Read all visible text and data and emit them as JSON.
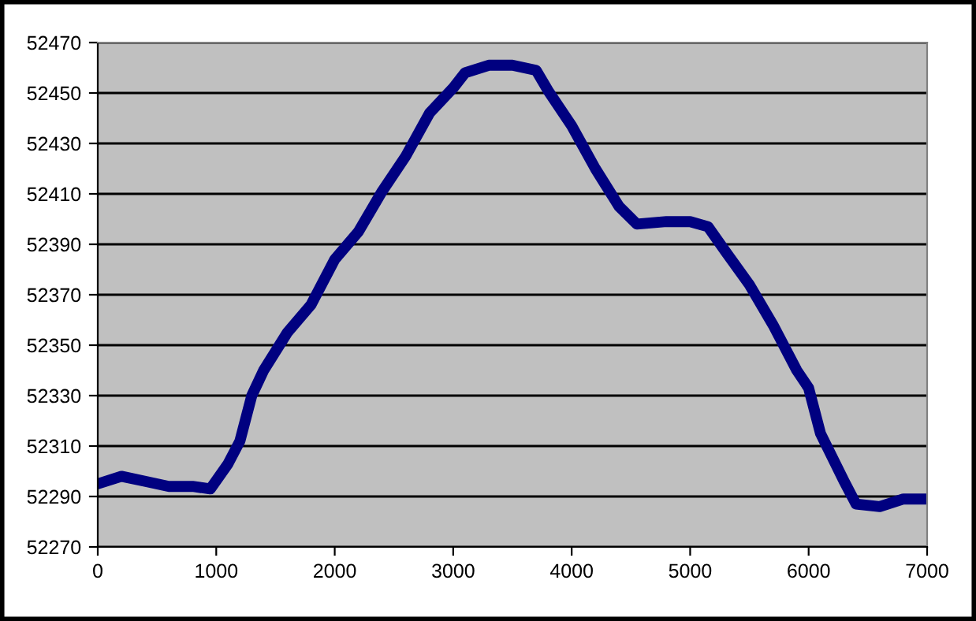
{
  "chart_data": {
    "type": "line",
    "xlim": [
      0,
      7000
    ],
    "xticks": [
      0,
      1000,
      2000,
      3000,
      4000,
      5000,
      6000,
      7000
    ],
    "ylim": [
      52270,
      52470
    ],
    "yticks": [
      52270,
      52290,
      52310,
      52330,
      52350,
      52370,
      52390,
      52410,
      52430,
      52450,
      52470
    ],
    "grid": "y",
    "legend": false,
    "series": [
      {
        "color": "#000080",
        "x": [
          0,
          200,
          400,
          600,
          800,
          950,
          1100,
          1200,
          1300,
          1400,
          1600,
          1800,
          2000,
          2200,
          2400,
          2600,
          2800,
          3000,
          3100,
          3300,
          3500,
          3700,
          3800,
          4000,
          4200,
          4400,
          4550,
          4800,
          5000,
          5150,
          5300,
          5500,
          5700,
          5900,
          6000,
          6100,
          6300,
          6400,
          6600,
          6800,
          7000
        ],
        "values": [
          52295,
          52298,
          52296,
          52294,
          52294,
          52293,
          52303,
          52312,
          52330,
          52340,
          52355,
          52366,
          52384,
          52395,
          52411,
          52425,
          52442,
          52452,
          52458,
          52461,
          52461,
          52459,
          52451,
          52437,
          52420,
          52405,
          52398,
          52399,
          52399,
          52397,
          52387,
          52374,
          52358,
          52340,
          52333,
          52315,
          52296,
          52287,
          52286,
          52289,
          52289
        ]
      }
    ]
  }
}
